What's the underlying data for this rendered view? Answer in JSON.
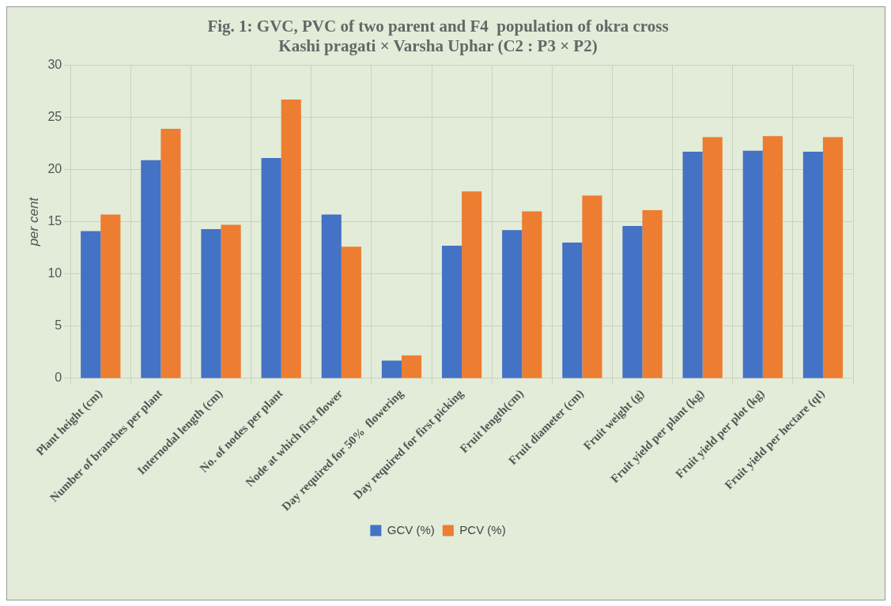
{
  "chart_data": {
    "type": "bar",
    "title": [
      "Fig. 1: GVC, PVC of two parent and F4  population of okra cross",
      "Kashi pragati × Varsha Uphar (C2 : P3 × P2)"
    ],
    "ylabel": "per cent",
    "categories": [
      "Plant height (cm)",
      "Number of branches per plant",
      "Internodal length (cm)",
      "No. of nodes per plant",
      "Node at which first flower",
      "Day required for 50%  flowering",
      "Day required for first picking",
      "Fruit length(cm)",
      "Fruit diameter (cm)",
      "Fruit weight (g)",
      "Fruit yield per plant (kg)",
      "Fruit yield per plot (kg)",
      "Fruit yield per hectare (qt)"
    ],
    "series": [
      {
        "name": "GCV (%)",
        "color": "#4472c4",
        "values": [
          14.1,
          20.9,
          14.3,
          21.1,
          15.7,
          1.7,
          12.7,
          14.2,
          13.0,
          14.6,
          21.7,
          21.8,
          21.7
        ]
      },
      {
        "name": "PCV (%)",
        "color": "#ed7d31",
        "values": [
          15.7,
          23.9,
          14.7,
          26.7,
          12.6,
          2.2,
          17.9,
          16.0,
          17.5,
          16.1,
          23.1,
          23.2,
          23.1
        ]
      }
    ],
    "ylim": [
      0,
      30
    ],
    "yticks": [
      0,
      5,
      10,
      15,
      20,
      25,
      30
    ],
    "grid": true,
    "legend": "bottom"
  }
}
